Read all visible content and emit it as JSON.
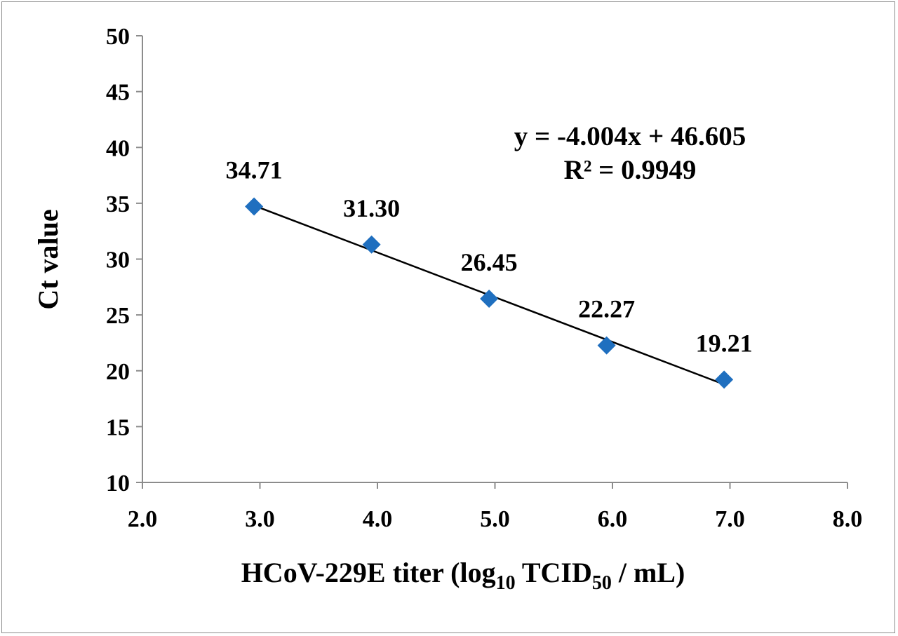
{
  "chart_data": {
    "type": "scatter",
    "x": [
      2.95,
      3.95,
      4.95,
      5.95,
      6.95
    ],
    "y": [
      34.71,
      31.3,
      26.45,
      22.27,
      19.21
    ],
    "data_labels": [
      "34.71",
      "31.30",
      "26.45",
      "22.27",
      "19.21"
    ],
    "xlim": [
      2.0,
      8.0
    ],
    "ylim": [
      10,
      50
    ],
    "xticks": [
      "2.0",
      "3.0",
      "4.0",
      "5.0",
      "6.0",
      "7.0",
      "8.0"
    ],
    "yticks": [
      "10",
      "15",
      "20",
      "25",
      "30",
      "35",
      "40",
      "45",
      "50"
    ],
    "xlabel": {
      "main": "HCoV-229E titer (log",
      "sub1": "10",
      "mid": " TCID",
      "sub2": "50",
      "end": " / mL)"
    },
    "ylabel": "Ct value",
    "trendline": {
      "slope": -4.004,
      "intercept": 46.605,
      "equation": "y = -4.004x + 46.605",
      "r_squared": "R² = 0.9949"
    },
    "grid": false,
    "legend": "none",
    "marker_color": "#1f6fbf",
    "line_color": "#000000"
  }
}
